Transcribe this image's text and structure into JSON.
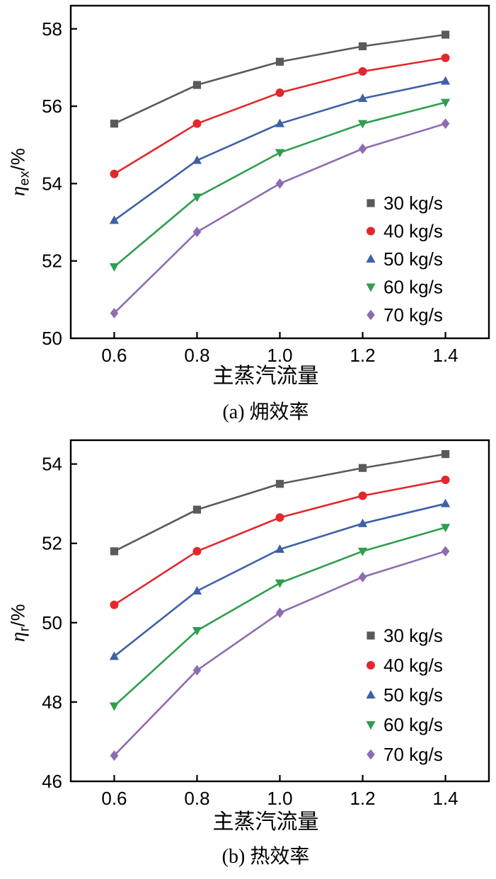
{
  "page": {
    "background": "#ffffff"
  },
  "chart_data": [
    {
      "type": "line",
      "caption": "(a) 㶲效率",
      "xlabel": "主蒸汽流量",
      "ylabel": {
        "symbol": "η",
        "subscript": "ex",
        "suffix": "/%"
      },
      "x": [
        0.6,
        0.8,
        1.0,
        1.2,
        1.4
      ],
      "xtick_labels": [
        "0.6",
        "0.8",
        "1.0",
        "1.2",
        "1.4"
      ],
      "xlim": [
        0.495,
        1.505
      ],
      "yticks": [
        50,
        52,
        54,
        56,
        58
      ],
      "ytick_labels": [
        "50",
        "52",
        "54",
        "56",
        "58"
      ],
      "ylim": [
        50,
        58.6
      ],
      "grid": false,
      "legend_position": "inside-right-bottom",
      "series": [
        {
          "name": "30 kg/s",
          "marker": "square",
          "color": "#5a5a5a",
          "values": [
            55.55,
            56.55,
            57.15,
            57.55,
            57.85
          ]
        },
        {
          "name": "40 kg/s",
          "marker": "circle",
          "color": "#e3282d",
          "values": [
            54.25,
            55.55,
            56.35,
            56.9,
            57.25
          ]
        },
        {
          "name": "50 kg/s",
          "marker": "triangle-up",
          "color": "#3d61a6",
          "values": [
            53.05,
            54.6,
            55.55,
            56.2,
            56.65
          ]
        },
        {
          "name": "60 kg/s",
          "marker": "triangle-down",
          "color": "#2f9e4f",
          "values": [
            51.85,
            53.65,
            54.8,
            55.55,
            56.1
          ]
        },
        {
          "name": "70 kg/s",
          "marker": "diamond",
          "color": "#8f6bb1",
          "values": [
            50.65,
            52.75,
            54.0,
            54.9,
            55.55
          ]
        }
      ]
    },
    {
      "type": "line",
      "caption": "(b) 热效率",
      "xlabel": "主蒸汽流量",
      "ylabel": {
        "symbol": "η",
        "subscript": "r",
        "suffix": "/%"
      },
      "x": [
        0.6,
        0.8,
        1.0,
        1.2,
        1.4
      ],
      "xtick_labels": [
        "0.6",
        "0.8",
        "1.0",
        "1.2",
        "1.4"
      ],
      "xlim": [
        0.495,
        1.505
      ],
      "yticks": [
        46,
        48,
        50,
        52,
        54
      ],
      "ytick_labels": [
        "46",
        "48",
        "50",
        "52",
        "54"
      ],
      "ylim": [
        46,
        54.6
      ],
      "grid": false,
      "legend_position": "inside-right-bottom",
      "series": [
        {
          "name": "30 kg/s",
          "marker": "square",
          "color": "#5a5a5a",
          "values": [
            51.8,
            52.85,
            53.5,
            53.9,
            54.25
          ]
        },
        {
          "name": "40 kg/s",
          "marker": "circle",
          "color": "#e3282d",
          "values": [
            50.45,
            51.8,
            52.65,
            53.2,
            53.6
          ]
        },
        {
          "name": "50 kg/s",
          "marker": "triangle-up",
          "color": "#3d61a6",
          "values": [
            49.15,
            50.8,
            51.85,
            52.5,
            53.0
          ]
        },
        {
          "name": "60 kg/s",
          "marker": "triangle-down",
          "color": "#2f9e4f",
          "values": [
            47.9,
            49.8,
            51.0,
            51.8,
            52.4
          ]
        },
        {
          "name": "70 kg/s",
          "marker": "diamond",
          "color": "#8f6bb1",
          "values": [
            46.65,
            48.8,
            50.25,
            51.15,
            51.8
          ]
        }
      ]
    }
  ]
}
